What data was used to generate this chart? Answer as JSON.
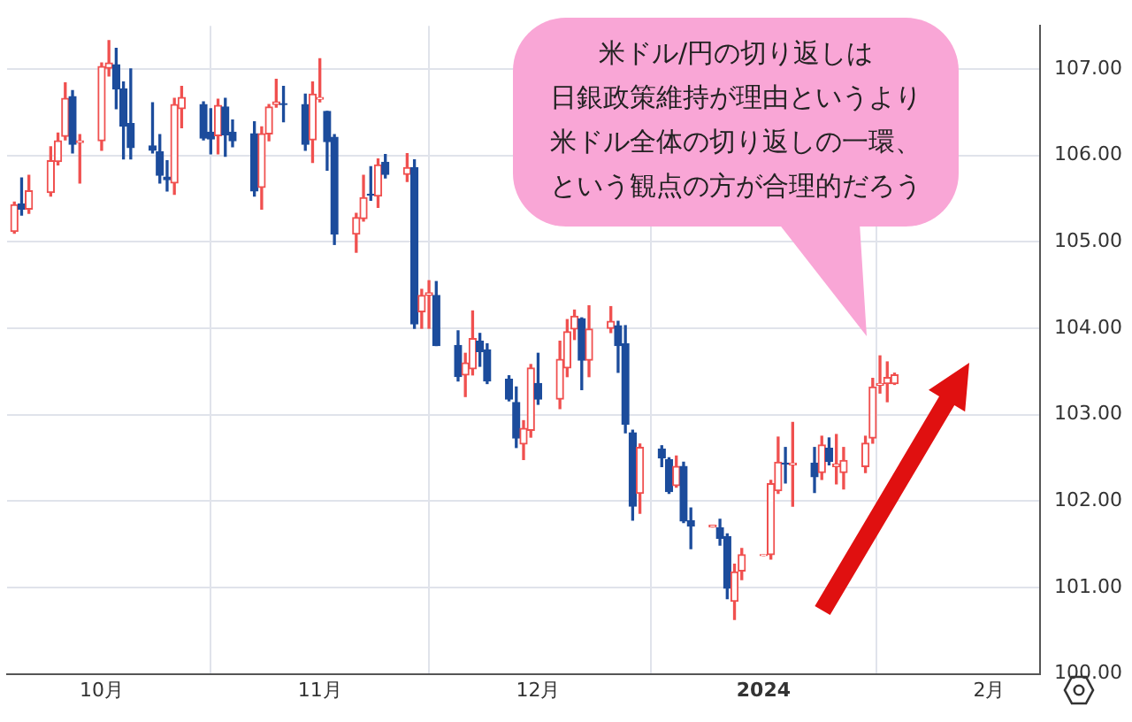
{
  "chart_data": {
    "type": "candlestick",
    "annotations": [
      "米ドル/円の切り返しは",
      "日銀政策維持が理由というより",
      "米ドル全体の切り返しの一環、",
      "という観点の方が合理的だろう"
    ],
    "x": [
      "2023-09-20",
      "2023-09-21",
      "2023-09-22",
      "2023-09-25",
      "2023-09-26",
      "2023-09-27",
      "2023-09-28",
      "2023-09-29",
      "2023-10-02",
      "2023-10-03",
      "2023-10-04",
      "2023-10-05",
      "2023-10-06",
      "2023-10-09",
      "2023-10-10",
      "2023-10-11",
      "2023-10-12",
      "2023-10-13",
      "2023-10-16",
      "2023-10-17",
      "2023-10-18",
      "2023-10-19",
      "2023-10-20",
      "2023-10-23",
      "2023-10-24",
      "2023-10-25",
      "2023-10-26",
      "2023-10-27",
      "2023-10-30",
      "2023-10-31",
      "2023-11-01",
      "2023-11-02",
      "2023-11-03",
      "2023-11-06",
      "2023-11-07",
      "2023-11-08",
      "2023-11-09",
      "2023-11-10",
      "2023-11-13",
      "2023-11-14",
      "2023-11-15",
      "2023-11-16",
      "2023-11-17",
      "2023-11-20",
      "2023-11-21",
      "2023-11-22",
      "2023-11-23",
      "2023-11-24",
      "2023-11-27",
      "2023-11-28",
      "2023-11-29",
      "2023-11-30",
      "2023-12-01",
      "2023-12-04",
      "2023-12-05",
      "2023-12-06",
      "2023-12-07",
      "2023-12-08",
      "2023-12-11",
      "2023-12-12",
      "2023-12-13",
      "2023-12-14",
      "2023-12-15",
      "2023-12-18",
      "2023-12-19",
      "2023-12-20",
      "2023-12-21",
      "2023-12-22",
      "2023-12-25",
      "2023-12-26",
      "2023-12-27",
      "2023-12-28",
      "2023-12-29",
      "2024-01-01",
      "2024-01-02",
      "2024-01-03",
      "2024-01-04",
      "2024-01-05",
      "2024-01-08",
      "2024-01-09",
      "2024-01-10",
      "2024-01-11",
      "2024-01-12",
      "2024-01-15",
      "2024-01-16",
      "2024-01-17",
      "2024-01-18",
      "2024-01-19"
    ],
    "ohlc": [
      [
        105.12,
        105.46,
        105.1,
        105.43
      ],
      [
        105.44,
        105.74,
        105.31,
        105.38
      ],
      [
        105.38,
        105.77,
        105.33,
        105.59
      ],
      [
        105.57,
        106.1,
        105.53,
        105.94
      ],
      [
        105.93,
        106.26,
        105.89,
        106.17
      ],
      [
        106.22,
        106.84,
        106.18,
        106.66
      ],
      [
        106.68,
        106.75,
        106.03,
        106.13
      ],
      [
        106.15,
        106.24,
        105.68,
        106.17
      ],
      [
        106.17,
        107.07,
        106.06,
        107.03
      ],
      [
        107.01,
        107.33,
        106.92,
        107.07
      ],
      [
        107.05,
        107.24,
        106.54,
        106.77
      ],
      [
        106.77,
        106.85,
        105.96,
        106.34
      ],
      [
        106.37,
        107.0,
        105.96,
        106.09
      ],
      [
        106.11,
        106.61,
        106.03,
        106.06
      ],
      [
        106.04,
        106.24,
        105.68,
        105.77
      ],
      [
        105.75,
        105.94,
        105.59,
        105.72
      ],
      [
        105.68,
        106.66,
        105.55,
        106.59
      ],
      [
        106.54,
        106.8,
        106.32,
        106.67
      ],
      [
        106.59,
        106.62,
        106.18,
        106.2
      ],
      [
        106.27,
        106.54,
        106.02,
        106.19
      ],
      [
        106.23,
        106.65,
        106.02,
        106.58
      ],
      [
        106.56,
        106.66,
        105.99,
        106.24
      ],
      [
        106.27,
        106.41,
        106.1,
        106.17
      ],
      [
        106.25,
        106.39,
        105.53,
        105.59
      ],
      [
        105.63,
        106.33,
        105.38,
        106.25
      ],
      [
        106.25,
        106.59,
        106.17,
        106.56
      ],
      [
        106.59,
        106.88,
        106.56,
        106.62
      ],
      [
        106.6,
        106.8,
        106.39,
        106.59
      ],
      [
        106.59,
        106.71,
        106.06,
        106.13
      ],
      [
        106.18,
        106.85,
        105.92,
        106.71
      ],
      [
        106.65,
        107.12,
        106.62,
        106.67
      ],
      [
        106.51,
        106.51,
        105.83,
        106.16
      ],
      [
        106.21,
        106.24,
        104.97,
        105.09
      ],
      [
        105.09,
        105.33,
        104.88,
        105.28
      ],
      [
        105.27,
        105.77,
        105.24,
        105.51
      ],
      [
        105.55,
        105.87,
        105.48,
        105.54
      ],
      [
        105.53,
        105.96,
        105.4,
        105.89
      ],
      [
        105.92,
        106.01,
        105.74,
        105.78
      ],
      [
        105.78,
        106.02,
        105.7,
        105.86
      ],
      [
        105.86,
        105.95,
        104.0,
        104.05
      ],
      [
        104.19,
        104.45,
        104.0,
        104.38
      ],
      [
        104.38,
        104.55,
        104.0,
        104.41
      ],
      [
        104.38,
        104.54,
        103.8,
        103.8
      ],
      [
        103.8,
        103.97,
        103.39,
        103.44
      ],
      [
        103.46,
        103.71,
        103.21,
        103.6
      ],
      [
        103.53,
        104.2,
        103.46,
        103.88
      ],
      [
        103.85,
        103.94,
        103.56,
        103.73
      ],
      [
        103.75,
        103.82,
        103.36,
        103.39
      ],
      [
        103.41,
        103.45,
        103.16,
        103.18
      ],
      [
        103.14,
        103.32,
        102.62,
        102.73
      ],
      [
        102.66,
        102.93,
        102.48,
        102.84
      ],
      [
        102.82,
        103.58,
        102.74,
        103.54
      ],
      [
        103.36,
        103.71,
        103.12,
        103.18
      ],
      [
        103.18,
        103.85,
        103.07,
        103.64
      ],
      [
        103.54,
        104.1,
        103.44,
        103.96
      ],
      [
        103.99,
        104.21,
        103.87,
        104.14
      ],
      [
        104.11,
        104.12,
        103.29,
        103.63
      ],
      [
        103.63,
        104.26,
        103.44,
        103.99
      ],
      [
        104.0,
        104.25,
        103.95,
        104.08
      ],
      [
        104.03,
        104.08,
        103.49,
        103.8
      ],
      [
        103.82,
        104.03,
        102.79,
        102.89
      ],
      [
        102.79,
        102.82,
        101.78,
        101.94
      ],
      [
        102.09,
        102.66,
        101.86,
        102.62
      ],
      [
        102.6,
        102.64,
        102.4,
        102.5
      ],
      [
        102.48,
        102.5,
        102.09,
        102.11
      ],
      [
        102.18,
        102.52,
        102.16,
        102.4
      ],
      [
        102.4,
        102.45,
        101.75,
        101.77
      ],
      [
        101.77,
        101.92,
        101.45,
        101.71
      ],
      [
        101.7,
        101.72,
        101.7,
        101.72
      ],
      [
        101.69,
        101.79,
        101.49,
        101.57
      ],
      [
        101.59,
        101.62,
        100.87,
        100.99
      ],
      [
        100.84,
        101.27,
        100.63,
        101.18
      ],
      [
        101.19,
        101.45,
        101.09,
        101.38
      ],
      [
        101.37,
        101.38,
        101.37,
        101.38
      ],
      [
        101.38,
        102.24,
        101.33,
        102.2
      ],
      [
        102.12,
        102.74,
        102.09,
        102.45
      ],
      [
        102.44,
        102.62,
        102.21,
        102.43
      ],
      [
        102.42,
        102.91,
        101.94,
        102.44
      ],
      [
        102.44,
        102.62,
        102.1,
        102.28
      ],
      [
        102.33,
        102.75,
        102.25,
        102.65
      ],
      [
        102.61,
        102.73,
        102.42,
        102.46
      ],
      [
        102.4,
        102.77,
        102.2,
        102.43
      ],
      [
        102.33,
        102.62,
        102.14,
        102.47
      ],
      [
        102.4,
        102.75,
        102.33,
        102.67
      ],
      [
        102.73,
        103.42,
        102.67,
        103.32
      ],
      [
        103.34,
        103.68,
        103.25,
        103.36
      ],
      [
        103.36,
        103.61,
        103.15,
        103.43
      ],
      [
        103.36,
        103.48,
        103.35,
        103.46
      ]
    ],
    "colors": [
      "#f0504f",
      "#1c4c9c",
      "#f0504f",
      "#f0504f",
      "#f0504f",
      "#f0504f",
      "#1c4c9c",
      "#f0504f",
      "#f0504f",
      "#f0504f",
      "#1c4c9c",
      "#1c4c9c",
      "#1c4c9c",
      "#1c4c9c",
      "#1c4c9c",
      "#1c4c9c",
      "#f0504f",
      "#f0504f",
      "#1c4c9c",
      "#1c4c9c",
      "#f0504f",
      "#1c4c9c",
      "#1c4c9c",
      "#1c4c9c",
      "#f0504f",
      "#f0504f",
      "#f0504f",
      "#1c4c9c",
      "#1c4c9c",
      "#f0504f",
      "#f0504f",
      "#1c4c9c",
      "#1c4c9c",
      "#f0504f",
      "#f0504f",
      "#1c4c9c",
      "#f0504f",
      "#1c4c9c",
      "#f0504f",
      "#1c4c9c",
      "#f0504f",
      "#f0504f",
      "#1c4c9c",
      "#1c4c9c",
      "#f0504f",
      "#f0504f",
      "#1c4c9c",
      "#1c4c9c",
      "#1c4c9c",
      "#1c4c9c",
      "#f0504f",
      "#f0504f",
      "#1c4c9c",
      "#f0504f",
      "#f0504f",
      "#f0504f",
      "#1c4c9c",
      "#f0504f",
      "#f0504f",
      "#1c4c9c",
      "#1c4c9c",
      "#1c4c9c",
      "#f0504f",
      "#1c4c9c",
      "#1c4c9c",
      "#f0504f",
      "#1c4c9c",
      "#1c4c9c",
      "#f0504f",
      "#1c4c9c",
      "#1c4c9c",
      "#f0504f",
      "#f0504f",
      "#f0504f",
      "#f0504f",
      "#f0504f",
      "#1c4c9c",
      "#f0504f",
      "#1c4c9c",
      "#f0504f",
      "#1c4c9c",
      "#f0504f",
      "#f0504f",
      "#f0504f",
      "#f0504f",
      "#f0504f",
      "#f0504f",
      "#f0504f"
    ],
    "xlim": [
      "2023-09-19",
      "2024-02-08"
    ],
    "xticks": [
      {
        "value": "2023-10-02",
        "label": "10月"
      },
      {
        "value": "2023-11-01",
        "label": "11月"
      },
      {
        "value": "2023-12-01",
        "label": "12月"
      },
      {
        "value": "2024-01-01",
        "label": "2024"
      },
      {
        "value": "2024-02-01",
        "label": "2月"
      }
    ],
    "ylim": [
      100,
      107.5
    ],
    "yticks": [
      {
        "value": 100,
        "label": "100.00"
      },
      {
        "value": 101,
        "label": "101.00"
      },
      {
        "value": 102,
        "label": "102.00"
      },
      {
        "value": 103,
        "label": "103.00"
      },
      {
        "value": 104,
        "label": "104.00"
      },
      {
        "value": 105,
        "label": "105.00"
      },
      {
        "value": 106,
        "label": "106.00"
      },
      {
        "value": 107,
        "label": "107.00"
      }
    ],
    "grid": true
  }
}
